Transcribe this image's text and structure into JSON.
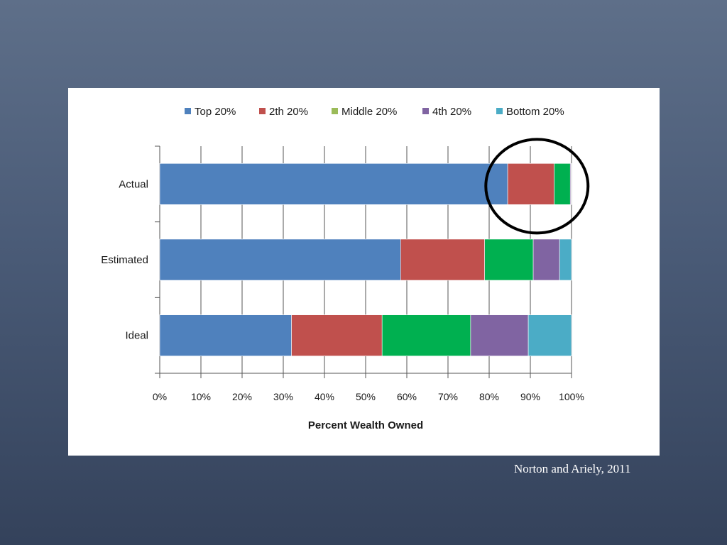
{
  "chart_data": {
    "type": "bar",
    "orientation": "horizontal",
    "stacked": true,
    "categories": [
      "Actual",
      "Estimated",
      "Ideal"
    ],
    "series": [
      {
        "name": "Top 20%",
        "color": "#4f81bd",
        "values": [
          84.5,
          58.5,
          32.0
        ]
      },
      {
        "name": "2th 20%",
        "color": "#c0504d",
        "values": [
          11.3,
          20.4,
          22.0
        ]
      },
      {
        "name": "Middle 20%",
        "color": "#00b050",
        "values": [
          3.9,
          11.8,
          21.5
        ]
      },
      {
        "name": "4th 20%",
        "color": "#8064a2",
        "values": [
          0.2,
          6.4,
          14.0
        ]
      },
      {
        "name": "Bottom 20%",
        "color": "#4bacc6",
        "values": [
          0.1,
          2.9,
          10.5
        ]
      }
    ],
    "legend_swatch_colors": {
      "Middle 20%": "#9bbb59"
    },
    "xlabel": "Percent Wealth Owned",
    "ylabel": "",
    "xlim": [
      0,
      100
    ],
    "x_tick_labels": [
      "0%",
      "10%",
      "20%",
      "30%",
      "40%",
      "50%",
      "60%",
      "70%",
      "80%",
      "90%",
      "100%"
    ],
    "grid": "vertical",
    "legend_position": "top",
    "annotation": "circle around the Actual bar's 2th 20% and Middle 20% segments"
  },
  "citation": "Norton and Ariely, 2011"
}
